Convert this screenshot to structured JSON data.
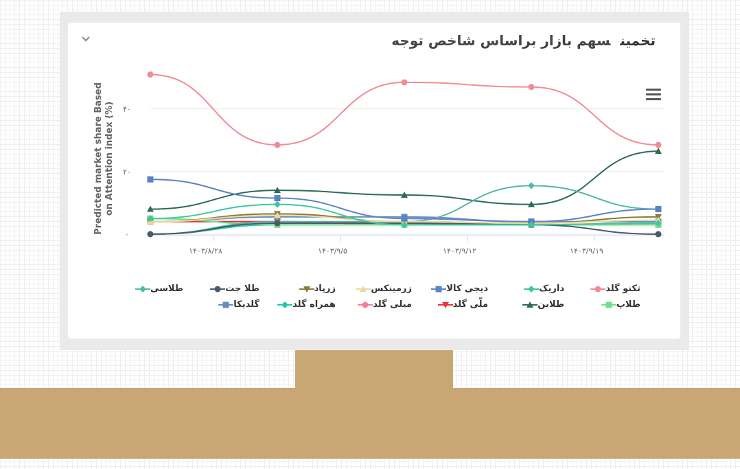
{
  "title": {
    "accent": "تخمین",
    "main": "سهم بازار براساس شاخص توجه"
  },
  "icons": {
    "collapse": "chevron-down-icon",
    "menu": "hamburger-menu-icon"
  },
  "chart_data": {
    "type": "line",
    "ylabel": [
      "Predicted market share Based",
      "on Attention index (%)"
    ],
    "xlabel": "",
    "x": [
      0,
      1,
      2,
      3,
      4
    ],
    "x_ticks": [
      {
        "pos": 0.5,
        "label": "۱۴۰۳/۸/۲۸"
      },
      {
        "pos": 1.5,
        "label": "۱۴۰۳/۹/۵"
      },
      {
        "pos": 2.5,
        "label": "۱۴۰۳/۹/۱۲"
      },
      {
        "pos": 3.5,
        "label": "۱۴۰۳/۹/۱۹"
      }
    ],
    "y_ticks": [
      {
        "v": 0,
        "label": "۰"
      },
      {
        "v": 20,
        "label": "۲۰"
      },
      {
        "v": 40,
        "label": "۴۰"
      }
    ],
    "ylim": [
      0,
      50
    ],
    "grid": true,
    "legend_position": "bottom",
    "series": [
      {
        "name": "تکنو گلد",
        "color": "#f28c94",
        "marker": "circle",
        "values": [
          51,
          28.5,
          48.5,
          47,
          28.5
        ]
      },
      {
        "name": "داریک",
        "color": "#3cc9a0",
        "marker": "diamond",
        "values": [
          5,
          9.5,
          3,
          3,
          3.5
        ]
      },
      {
        "name": "دیجی کالا",
        "color": "#5b83c4",
        "marker": "square",
        "values": [
          17.5,
          11.5,
          5,
          4,
          8
        ]
      },
      {
        "name": "زرمینکس",
        "color": "#e8dca0",
        "marker": "triangle",
        "values": [
          4,
          6,
          4,
          3.5,
          4.5
        ]
      },
      {
        "name": "زرپاد",
        "color": "#8a7a3a",
        "marker": "triangle-down",
        "values": [
          4,
          6.5,
          4,
          3.5,
          5.5
        ]
      },
      {
        "name": "طلا جت",
        "color": "#4a5a66",
        "marker": "circle",
        "values": [
          0,
          3.5,
          3.5,
          3,
          0
        ]
      },
      {
        "name": "طلاسی",
        "color": "#52b8a8",
        "marker": "diamond",
        "values": [
          0,
          4,
          4,
          15.5,
          8
        ]
      },
      {
        "name": "طلاپ",
        "color": "#6ee08a",
        "marker": "square",
        "values": [
          5,
          3,
          3,
          3,
          3
        ]
      },
      {
        "name": "طلاین",
        "color": "#2e6a58",
        "marker": "triangle",
        "values": [
          8,
          14,
          12.5,
          9.5,
          26.5
        ]
      },
      {
        "name": "ملّی گلد",
        "color": "#e8323a",
        "marker": "triangle-down",
        "values": [
          4,
          4,
          3.5,
          3,
          3.5
        ]
      },
      {
        "name": "میلی گلد",
        "color": "#f57e96",
        "marker": "circle",
        "values": [
          4,
          4,
          3,
          3,
          3
        ]
      },
      {
        "name": "همراه گلد",
        "color": "#20c8a8",
        "marker": "diamond",
        "values": [
          0,
          3,
          3,
          3,
          3
        ]
      },
      {
        "name": "گلدیکا",
        "color": "#6a8dc0",
        "marker": "square",
        "values": [
          4,
          5.5,
          5.5,
          4,
          4
        ]
      }
    ]
  }
}
